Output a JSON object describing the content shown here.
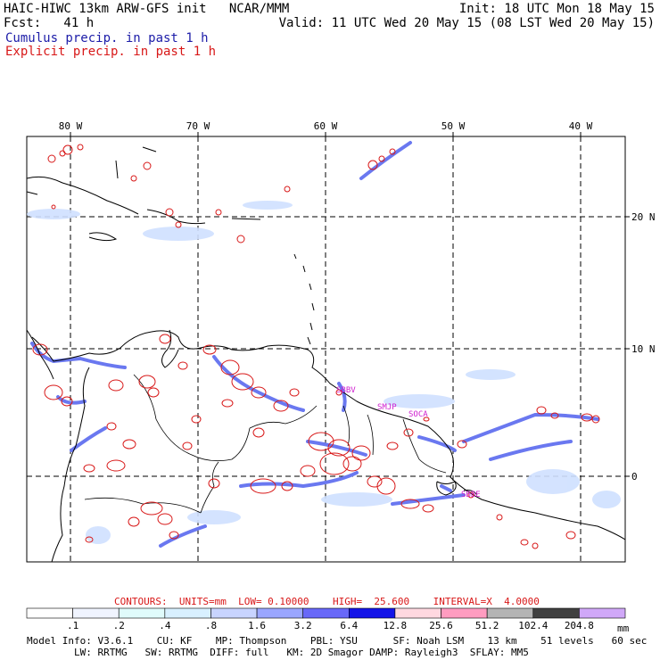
{
  "header": {
    "left1": "HAIC-HIWC 13km ARW-GFS init   NCAR/MMM",
    "left2": "Fcst:   41 h",
    "right1": "Init: 18 UTC Mon 18 May 15",
    "right2": "Valid: 11 UTC Wed 20 May 15 (08 LST Wed 20 May 15)",
    "cumulus": "Cumulus precip. in past 1 h",
    "explicit": "Explicit precip. in past 1 h"
  },
  "map": {
    "lon_labels": [
      "80 W",
      "70 W",
      "60 W",
      "50 W",
      "40 W"
    ],
    "lat_labels": [
      "20 N",
      "10 N",
      "0"
    ],
    "stations": [
      "SBBV",
      "SMJP",
      "SOCA",
      "SBBE"
    ],
    "colors": {
      "coast": "#000000",
      "grid": "#000000",
      "explicit": "#d81818",
      "cumulus_light": "#cfe0ff",
      "cumulus_mid": "#6a78f0",
      "station": "#d020d0"
    }
  },
  "footer": {
    "contours": "CONTOURS:  UNITS=mm  LOW= 0.10000    HIGH=  25.600    INTERVAL=X  4.0000",
    "legend_labels": [
      ".1",
      ".2",
      ".4",
      ".8",
      "1.6",
      "3.2",
      "6.4",
      "12.8",
      "25.6",
      "51.2",
      "102.4",
      "204.8"
    ],
    "legend_colors": [
      "#ffffff",
      "#f0f4ff",
      "#e0fbfb",
      "#d8f0ff",
      "#c8d4ff",
      "#9aa6ff",
      "#6868f8",
      "#1414e8",
      "#ffd8e0",
      "#ff9cc0",
      "#b4b4b4",
      "#404040",
      "#d0a8f8"
    ],
    "units": "mm",
    "model1": "Model Info: V3.6.1    CU: KF    MP: Thompson    PBL: YSU      SF: Noah LSM    13 km    51 levels   60 sec",
    "model2": "        LW: RRTMG   SW: RRTMG  DIFF: full   KM: 2D Smagor DAMP: Rayleigh3  SFLAY: MM5"
  }
}
